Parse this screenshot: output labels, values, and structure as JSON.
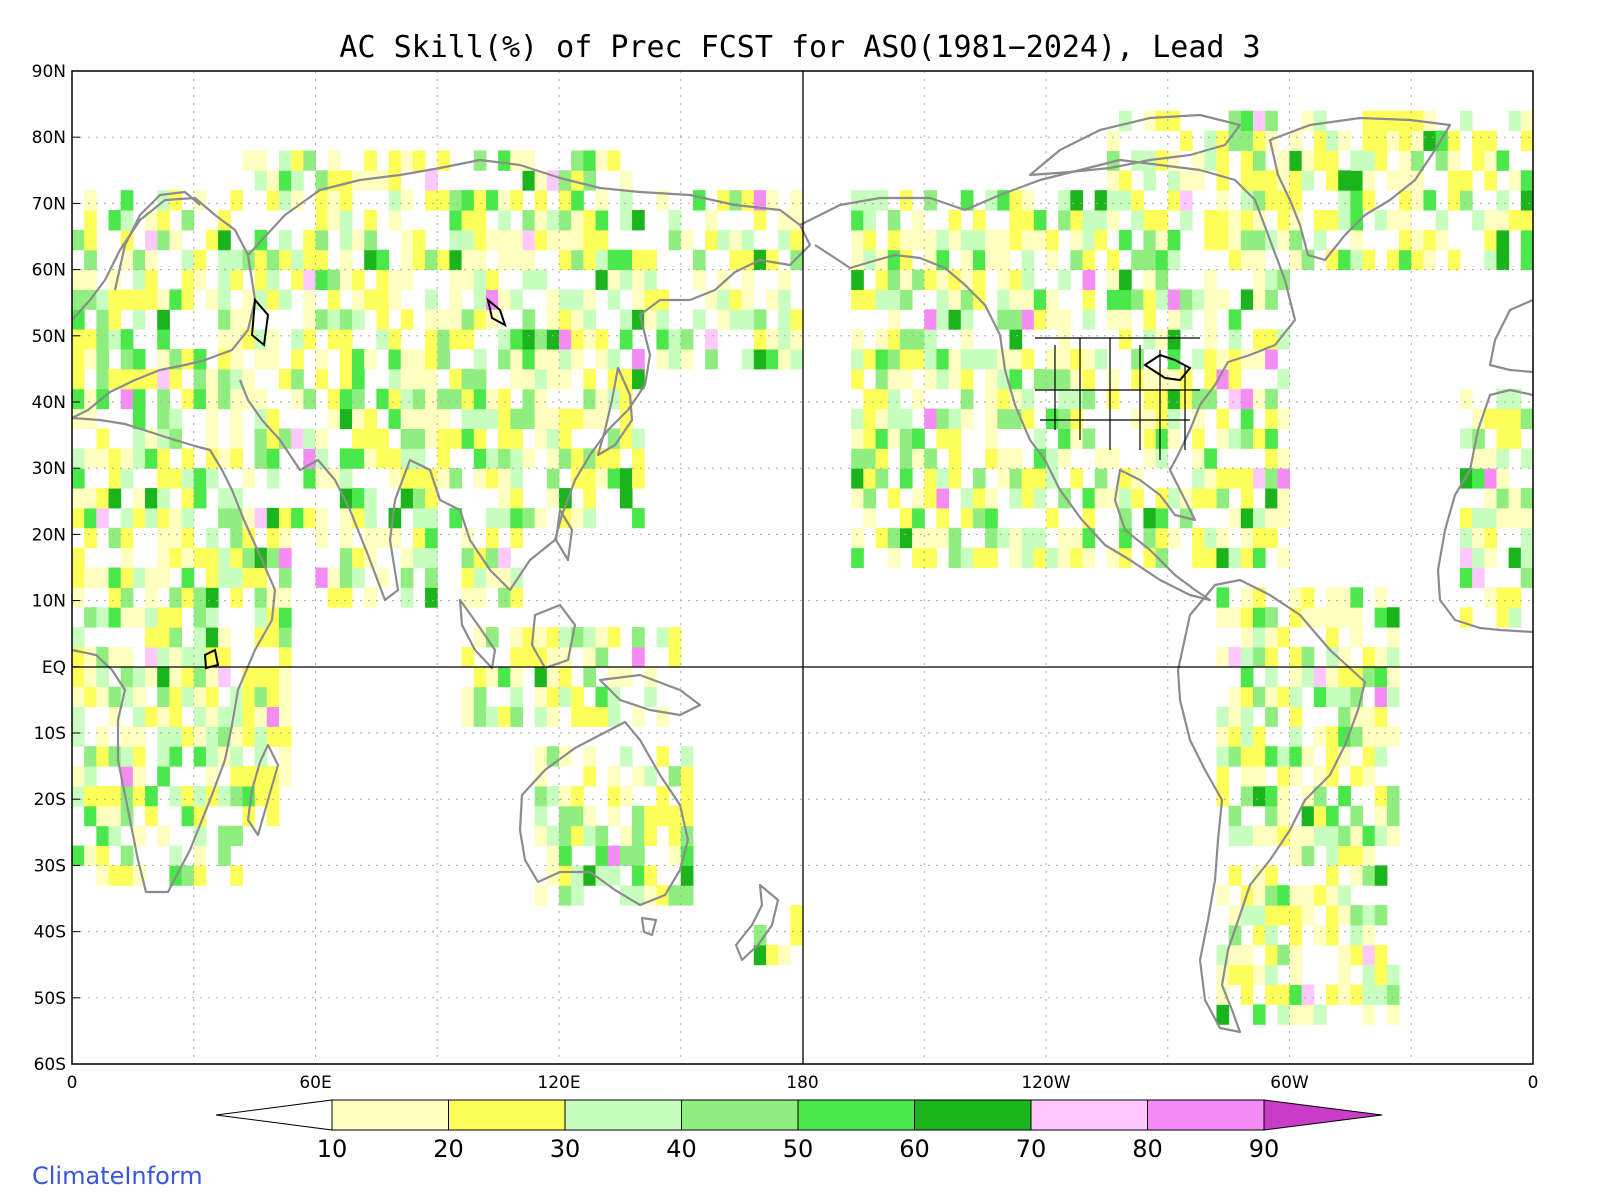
{
  "title": "AC Skill(%) of Prec FCST for ASO(1981−2024), Lead 3",
  "brand": "ClimateInform",
  "colors": {
    "coast": "#8c8c8c",
    "lakes": "#000000",
    "grid": "#aaaaaa",
    "frame": "#000000"
  },
  "axes": {
    "y_ticks": [
      "90N",
      "80N",
      "70N",
      "60N",
      "50N",
      "40N",
      "30N",
      "20N",
      "10N",
      "EQ",
      "10S",
      "20S",
      "30S",
      "40S",
      "50S",
      "60S"
    ],
    "x_ticks": [
      "0",
      "60E",
      "120E",
      "180",
      "120W",
      "60W",
      "0"
    ]
  },
  "colorbar": {
    "labels": [
      "10",
      "20",
      "30",
      "40",
      "50",
      "60",
      "70",
      "80",
      "90"
    ],
    "bins": [
      {
        "range": "<10",
        "color": "#ffffff"
      },
      {
        "range": "10-20",
        "color": "#ffffc0"
      },
      {
        "range": "20-30",
        "color": "#ffff5a"
      },
      {
        "range": "30-40",
        "color": "#c8ffc0"
      },
      {
        "range": "40-50",
        "color": "#90ee80"
      },
      {
        "range": "50-60",
        "color": "#4ae84a"
      },
      {
        "range": "60-70",
        "color": "#1cb41c"
      },
      {
        "range": "70-80",
        "color": "#ffc8ff"
      },
      {
        "range": "80-90",
        "color": "#f58cf5"
      },
      {
        "range": ">90",
        "color": "#c83cc8"
      }
    ]
  },
  "map_data": {
    "projection": "cylindrical equidistant",
    "lon_range": [
      0,
      360
    ],
    "lat_range": [
      -60,
      90
    ],
    "gridline_lat_step": 10,
    "gridline_lon_step": 30,
    "reference_lines": [
      "Equator",
      "180"
    ]
  }
}
